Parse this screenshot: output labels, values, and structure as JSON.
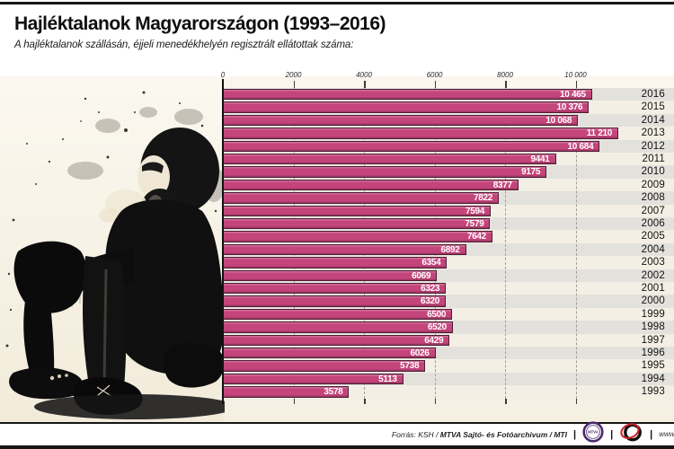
{
  "page": {
    "title": "Hajléktalanok Magyarországon (1993–2016)",
    "subtitle": "A hajléktalanok szállásán, éjjeli menedékhelyén regisztrált ellátottak száma:"
  },
  "chart_data": {
    "type": "bar",
    "orientation": "horizontal",
    "title": "Hajléktalanok Magyarországon (1993–2016)",
    "xlabel": "",
    "ylabel": "",
    "categories": [
      "2016",
      "2015",
      "2014",
      "2013",
      "2012",
      "2011",
      "2010",
      "2009",
      "2008",
      "2007",
      "2006",
      "2005",
      "2004",
      "2003",
      "2002",
      "2001",
      "2000",
      "1999",
      "1998",
      "1997",
      "1996",
      "1995",
      "1994",
      "1993"
    ],
    "values": [
      10465,
      10376,
      10068,
      11210,
      10684,
      9441,
      9175,
      8377,
      7822,
      7594,
      7579,
      7642,
      6892,
      6354,
      6069,
      6323,
      6320,
      6500,
      6520,
      6429,
      6026,
      5738,
      5113,
      3578
    ],
    "value_labels": [
      "10 465",
      "10 376",
      "10 068",
      "11 210",
      "10 684",
      "9441",
      "9175",
      "8377",
      "7822",
      "7594",
      "7579",
      "7642",
      "6892",
      "6354",
      "6069",
      "6323",
      "6320",
      "6500",
      "6520",
      "6429",
      "6026",
      "5738",
      "5113",
      "3578"
    ],
    "x_tick_values": [
      0,
      2000,
      4000,
      6000,
      8000,
      10000
    ],
    "x_tick_labels": [
      "0",
      "2000",
      "4000",
      "6000",
      "8000",
      "10 000"
    ],
    "xlim": [
      0,
      12800
    ],
    "grid": "dashed-vertical",
    "legend": "none",
    "bar_color": "#c4457b",
    "bar_border_color": "#4d1d36",
    "row_stripe_colors": [
      "#e3e1dc",
      "#f4efe4"
    ]
  },
  "photo": {
    "description": "High-contrast black-and-white photo of a bearded homeless man sitting on the ground, arms resting on his knees"
  },
  "footer": {
    "source_prefix": "Forrás: KSH / ",
    "source_bold": "MTVA Sajtó- és Fotóarchivum / MTI",
    "pipe": "|",
    "mtva_logo_text": "MTVA",
    "url": "www.m"
  }
}
